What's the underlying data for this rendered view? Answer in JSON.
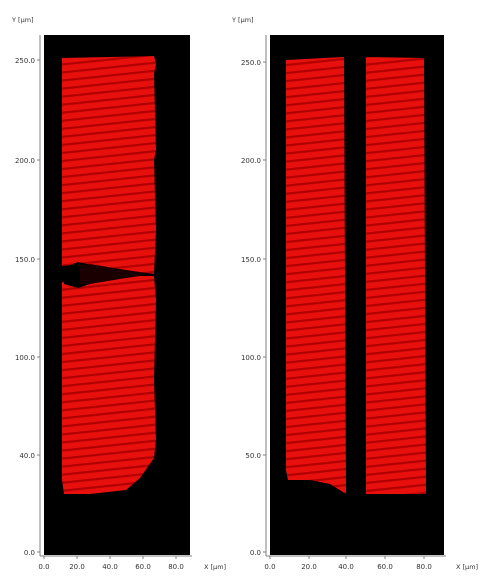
{
  "colors": {
    "background": "#000000",
    "fill": "#e8100c",
    "stripe": "#b00000",
    "axis": "#808080",
    "text": "#333333"
  },
  "left_plot": {
    "y_axis_label": "Y [µm]",
    "x_axis_label": "X [µm]",
    "y_ticks": [
      "0.0",
      "40.0",
      "100.0",
      "150.0",
      "200.0",
      "250.0"
    ],
    "x_ticks": [
      "0.0",
      "20.0",
      "40.0",
      "60.0",
      "80.0"
    ]
  },
  "right_plot": {
    "y_axis_label": "Y [µm]",
    "x_axis_label": "X [µm]",
    "y_ticks": [
      "0.0",
      "50.0",
      "100.0",
      "150.0",
      "200.0",
      "250.0"
    ],
    "x_ticks": [
      "0.0",
      "20.0",
      "40.0",
      "60.0",
      "80.0"
    ]
  }
}
